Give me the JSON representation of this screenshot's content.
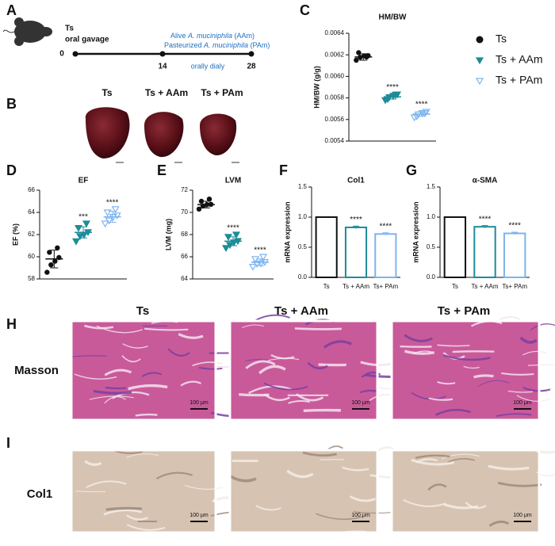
{
  "panel_labels": [
    "A",
    "B",
    "C",
    "D",
    "E",
    "F",
    "G",
    "H",
    "I"
  ],
  "timeline": {
    "start_label": "Ts",
    "start_sub": "oral gavage",
    "days": [
      "0",
      "14",
      "28"
    ],
    "treatment_1": [
      "Alive ",
      "A. muciniphila",
      " (AAm)"
    ],
    "treatment_2": [
      "Pasteurized ",
      "A. muciniphila",
      " (PAm)"
    ],
    "note": "orally dialy"
  },
  "hearts": {
    "labels": [
      "Ts",
      "Ts + AAm",
      "Ts + PAm"
    ]
  },
  "legend": [
    {
      "name": "Ts",
      "color": "#111111",
      "marker": "circle"
    },
    {
      "name": "Ts + AAm",
      "color": "#1d8c99",
      "marker": "triangle-down"
    },
    {
      "name": "Ts + PAm",
      "color": "#7db4ef",
      "marker": "triangle-down-open"
    }
  ],
  "chart_data": [
    {
      "type": "dotplot",
      "title": "HM/BW",
      "ylabel": "HM/BW (g/g)",
      "ylim": [
        0.0054,
        0.0064
      ],
      "yticks": [
        0.0054,
        0.0056,
        0.0058,
        {
          "value": 0.006,
          "label": "0.0060"
        },
        0.0062,
        0.0064
      ],
      "groups": [
        {
          "values": [
            0.00615,
            0.00617,
            0.00619,
            0.0062,
            0.00622,
            0.00618
          ],
          "mean": 0.00618,
          "sd": 3e-05,
          "sig": null
        },
        {
          "values": [
            0.00578,
            0.0058,
            0.00582,
            0.00584,
            0.00579,
            0.00583
          ],
          "mean": 0.00581,
          "sd": 2e-05,
          "sig": "****"
        },
        {
          "values": [
            0.00562,
            0.00564,
            0.00566,
            0.00568,
            0.00563,
            0.00566
          ],
          "mean": 0.00565,
          "sd": 2e-05,
          "sig": "****"
        }
      ]
    },
    {
      "type": "dotplot",
      "title": "EF",
      "ylabel": "EF (%)",
      "ylim": [
        58,
        66
      ],
      "yticks": [
        58,
        60,
        62,
        64,
        66
      ],
      "groups": [
        {
          "values": [
            58.6,
            59.2,
            59.6,
            60.0,
            60.4,
            60.8
          ],
          "mean": 59.8,
          "sd": 0.8,
          "sig": null
        },
        {
          "values": [
            61.4,
            61.8,
            62.0,
            62.3,
            62.6,
            63.0
          ],
          "mean": 62.2,
          "sd": 0.5,
          "sig": "***"
        },
        {
          "values": [
            63.0,
            63.2,
            63.6,
            63.8,
            64.0,
            64.3
          ],
          "mean": 63.6,
          "sd": 0.5,
          "sig": "****"
        }
      ]
    },
    {
      "type": "dotplot",
      "title": "LVM",
      "ylabel": "LVM (mg)",
      "ylim": [
        64,
        72
      ],
      "yticks": [
        64,
        66,
        68,
        70,
        72
      ],
      "groups": [
        {
          "values": [
            70.3,
            70.5,
            70.7,
            70.8,
            71.0,
            71.2
          ],
          "mean": 70.7,
          "sd": 0.3,
          "sig": null
        },
        {
          "values": [
            66.8,
            67.0,
            67.3,
            67.5,
            67.8,
            68.0
          ],
          "mean": 67.4,
          "sd": 0.4,
          "sig": "****"
        },
        {
          "values": [
            65.1,
            65.3,
            65.4,
            65.6,
            65.8,
            66.0
          ],
          "mean": 65.5,
          "sd": 0.3,
          "sig": "****"
        }
      ]
    },
    {
      "type": "bar",
      "title": "Col1",
      "ylabel": "mRNA expression",
      "ylim": [
        0,
        1.5
      ],
      "yticks": [
        {
          "value": 0,
          "label": "0.0"
        },
        0.5,
        {
          "value": 1,
          "label": "1.0"
        },
        1.5
      ],
      "categories": [
        "Ts",
        "Ts + AAm",
        "Ts+ PAm"
      ],
      "values": [
        1.0,
        0.83,
        0.72
      ],
      "errors": [
        0,
        0.02,
        0.02
      ],
      "sig": [
        null,
        "****",
        "****"
      ]
    },
    {
      "type": "bar",
      "title": "α-SMA",
      "ylabel": "mRNA expression",
      "ylim": [
        0,
        1.5
      ],
      "yticks": [
        {
          "value": 0,
          "label": "0.0"
        },
        0.5,
        {
          "value": 1,
          "label": "1.0"
        },
        1.5
      ],
      "categories": [
        "Ts",
        "Ts + AAm",
        "Ts+ PAm"
      ],
      "values": [
        1.0,
        0.84,
        0.73
      ],
      "errors": [
        0,
        0.02,
        0.02
      ],
      "sig": [
        null,
        "****",
        "****"
      ]
    }
  ],
  "histology": {
    "columns": [
      "Ts",
      "Ts + AAm",
      "Ts + PAm"
    ],
    "rows": [
      "Masson",
      "Col1"
    ],
    "scale_bar": "100 μm"
  }
}
